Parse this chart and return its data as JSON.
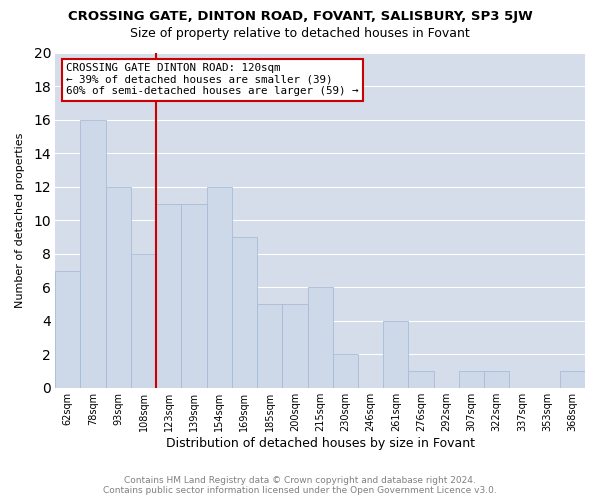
{
  "title": "CROSSING GATE, DINTON ROAD, FOVANT, SALISBURY, SP3 5JW",
  "subtitle": "Size of property relative to detached houses in Fovant",
  "xlabel": "Distribution of detached houses by size in Fovant",
  "ylabel": "Number of detached properties",
  "footer_line1": "Contains HM Land Registry data © Crown copyright and database right 2024.",
  "footer_line2": "Contains public sector information licensed under the Open Government Licence v3.0.",
  "categories": [
    "62sqm",
    "78sqm",
    "93sqm",
    "108sqm",
    "123sqm",
    "139sqm",
    "154sqm",
    "169sqm",
    "185sqm",
    "200sqm",
    "215sqm",
    "230sqm",
    "246sqm",
    "261sqm",
    "276sqm",
    "292sqm",
    "307sqm",
    "322sqm",
    "337sqm",
    "353sqm",
    "368sqm"
  ],
  "values": [
    7,
    16,
    12,
    8,
    11,
    11,
    12,
    9,
    5,
    5,
    6,
    2,
    0,
    4,
    1,
    0,
    1,
    1,
    0,
    0,
    1
  ],
  "bar_color": "#cdd8e8",
  "bar_edge_color": "#a8bcd8",
  "annotation_text": "CROSSING GATE DINTON ROAD: 120sqm\n← 39% of detached houses are smaller (39)\n60% of semi-detached houses are larger (59) →",
  "annotation_box_color": "#cc0000",
  "ylim": [
    0,
    20
  ],
  "yticks": [
    0,
    2,
    4,
    6,
    8,
    10,
    12,
    14,
    16,
    18,
    20
  ],
  "grid_color": "#d4dde9",
  "background_color": "#ffffff",
  "vline_color": "#cc0000",
  "vline_x_index": 3.5,
  "title_fontsize": 9.5,
  "subtitle_fontsize": 9
}
